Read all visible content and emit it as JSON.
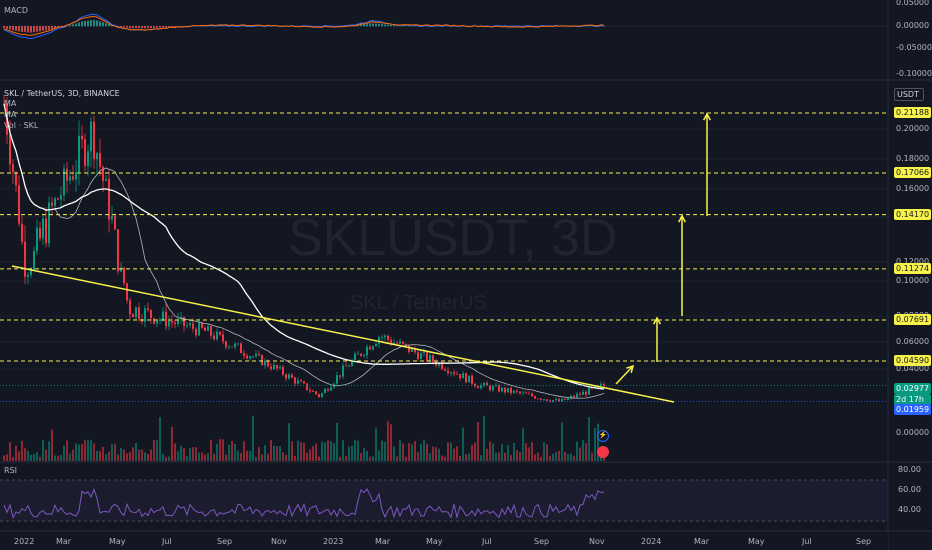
{
  "watermark": {
    "symbol": "SKLUSDT, 3D",
    "name": "SKL  / TetherUS"
  },
  "header": {
    "title": "SKL / TetherUS, 3D, BINANCE",
    "ma1": "MA",
    "ma2": "MA",
    "vol": "Vol · SKL"
  },
  "panes": {
    "macd": "MACD",
    "rsi": "RSI",
    "currency": "USDT"
  },
  "price_tags": {
    "last": "0.02977",
    "countdown": "2d 17h",
    "low": "0.01959"
  },
  "chart_data": {
    "type": "candlestick",
    "title": "SKL / TetherUS, 3D, BINANCE",
    "x_labels": [
      "2022",
      "Mar",
      "May",
      "Jul",
      "Sep",
      "Nov",
      "2023",
      "Mar",
      "May",
      "Jul",
      "Sep",
      "Nov",
      "2024",
      "Mar",
      "May",
      "Jul",
      "Sep"
    ],
    "price_axis": [
      "0.20000",
      "0.18000",
      "0.16000",
      "0.14000",
      "0.12000",
      "0.10000",
      "0.08000",
      "0.06000",
      "0.04000",
      "0.00000"
    ],
    "target_levels": [
      "0.21188",
      "0.17066",
      "0.14170",
      "0.11274",
      "0.07691",
      "0.04590"
    ],
    "macd_axis": [
      "0.05000",
      "0.00000",
      "-0.05000",
      "-0.10000"
    ],
    "rsi_axis": [
      "80.00",
      "60.00",
      "40.00"
    ],
    "key_points": [
      {
        "date": "2022-01",
        "close": 0.22
      },
      {
        "date": "2022-01-25",
        "close": 0.11
      },
      {
        "date": "2022-04-10",
        "close": 0.2
      },
      {
        "date": "2022-05-20",
        "close": 0.085
      },
      {
        "date": "2022-08-15",
        "close": 0.068
      },
      {
        "date": "2022-12-20",
        "close": 0.023
      },
      {
        "date": "2023-02-25",
        "close": 0.065
      },
      {
        "date": "2023-06-15",
        "close": 0.03
      },
      {
        "date": "2023-09-15",
        "close": 0.0196
      },
      {
        "date": "2023-11-03",
        "close": 0.02977
      }
    ],
    "trendline": [
      {
        "date": "2022-01",
        "price": 0.107
      },
      {
        "date": "2024-01-15",
        "price": 0.024
      }
    ],
    "colors": {
      "up": "#089981",
      "down": "#f23645",
      "trendline": "#f7f24a",
      "ma_fast": "#b2b5be",
      "ma_slow": "#ffffff",
      "rsi": "#7e57c2"
    }
  }
}
